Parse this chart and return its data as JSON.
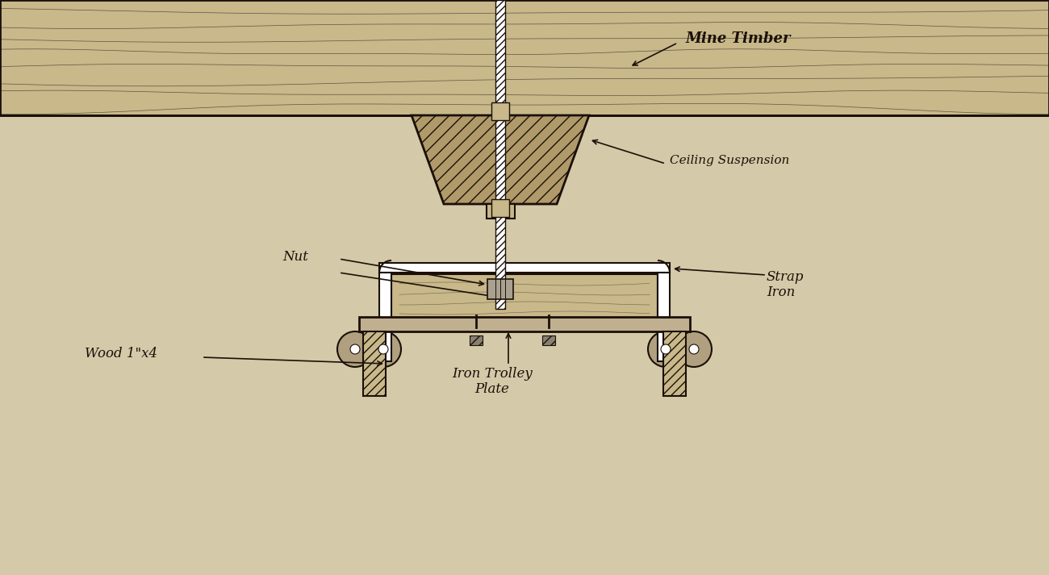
{
  "bg_color": "#d4c9a8",
  "line_color": "#1a1008",
  "wood_color": "#c8b88a",
  "wood_dark": "#b09a6a",
  "hatch_color": "#1a1008",
  "labels": {
    "mine_timber": "Mine Timber",
    "ceiling_suspension": "Ceiling Suspension",
    "nut": "Nut",
    "strap_iron": "Strap\nIron",
    "wood_1x4": "Wood 1\"x4",
    "iron_trolley_plate": "Iron Trolley\nPlate"
  },
  "figsize": [
    13.0,
    7.13
  ],
  "dpi": 100
}
